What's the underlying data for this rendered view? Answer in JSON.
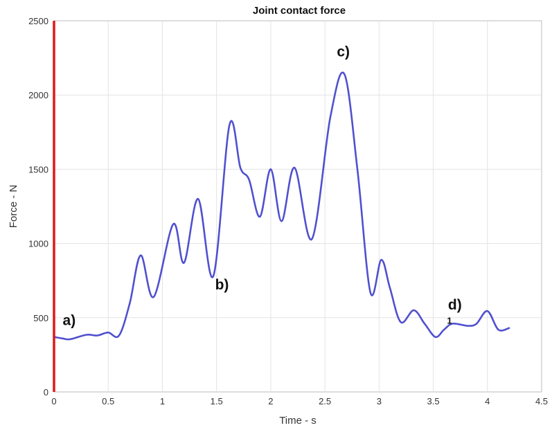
{
  "chart_data": {
    "type": "line",
    "title": "Joint contact force",
    "xlabel": "Time - s",
    "ylabel": "Force - N",
    "xlim": [
      0,
      4.5
    ],
    "ylim": [
      0,
      2500
    ],
    "xticks": [
      0,
      0.5,
      1,
      1.5,
      2,
      2.5,
      3,
      3.5,
      4,
      4.5
    ],
    "xtick_labels": [
      "0",
      "0.5",
      "1",
      "1.5",
      "2",
      "2.5",
      "3",
      "3.5",
      "4",
      "4.5"
    ],
    "yticks": [
      0,
      500,
      1000,
      1500,
      2000,
      2500
    ],
    "ytick_labels": [
      "0",
      "500",
      "1000",
      "1500",
      "2000",
      "2500"
    ],
    "grid": true,
    "line_color": "#5050d0",
    "marker_line_color": "#e01818",
    "series": [
      {
        "x": [
          0,
          0.08,
          0.15,
          0.3,
          0.4,
          0.5,
          0.6,
          0.7,
          0.8,
          0.92,
          1.1,
          1.2,
          1.33,
          1.47,
          1.62,
          1.72,
          1.8,
          1.9,
          2.0,
          2.1,
          2.22,
          2.38,
          2.55,
          2.68,
          2.8,
          2.92,
          3.02,
          3.1,
          3.2,
          3.32,
          3.42,
          3.52,
          3.6,
          3.68,
          3.82,
          3.9,
          4.0,
          4.1,
          4.2
        ],
        "y": [
          370,
          360,
          355,
          385,
          380,
          400,
          380,
          600,
          920,
          640,
          1130,
          870,
          1300,
          780,
          1800,
          1510,
          1430,
          1180,
          1500,
          1150,
          1510,
          1030,
          1850,
          2140,
          1500,
          670,
          890,
          700,
          470,
          550,
          460,
          370,
          420,
          460,
          445,
          460,
          545,
          420,
          430
        ]
      }
    ],
    "annotations": [
      {
        "text": "a)",
        "x": 0.14,
        "y": 450
      },
      {
        "text": "b)",
        "x": 1.55,
        "y": 690
      },
      {
        "text": "c)",
        "x": 2.67,
        "y": 2260
      },
      {
        "text": "d)",
        "x": 3.7,
        "y": 555
      },
      {
        "text": "1",
        "x": 3.65,
        "y": 460
      }
    ]
  }
}
